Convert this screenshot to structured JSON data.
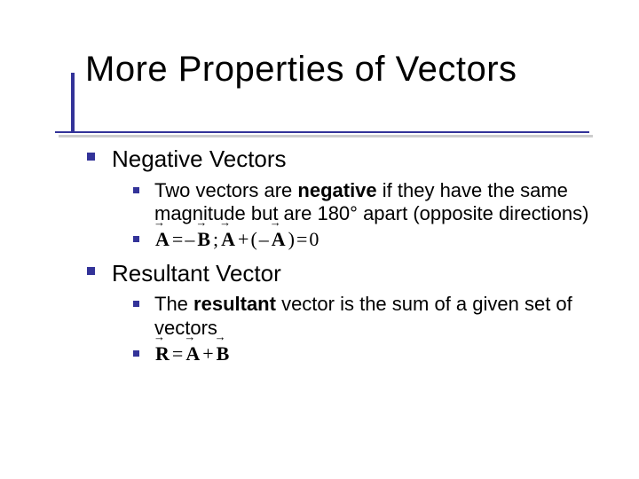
{
  "colors": {
    "accent": "#333399",
    "text": "#000000",
    "bg": "#ffffff"
  },
  "title": "More Properties of Vectors",
  "sections": [
    {
      "heading": "Negative Vectors",
      "items": [
        {
          "type": "text",
          "runs": [
            {
              "t": "Two vectors are ",
              "b": false
            },
            {
              "t": "negative",
              "b": true
            },
            {
              "t": " if they have the same magnitude but are 180° apart (opposite directions)",
              "b": false
            }
          ]
        },
        {
          "type": "equation",
          "tokens": [
            {
              "k": "vec",
              "t": "A"
            },
            {
              "k": "op",
              "t": " = "
            },
            {
              "k": "op",
              "t": "–"
            },
            {
              "k": "vec",
              "t": "B"
            },
            {
              "k": "op",
              "t": ";  "
            },
            {
              "k": "vec",
              "t": "A"
            },
            {
              "k": "op",
              "t": " + "
            },
            {
              "k": "op",
              "t": "("
            },
            {
              "k": "op",
              "t": "–"
            },
            {
              "k": "vec",
              "t": "A"
            },
            {
              "k": "op",
              "t": ")"
            },
            {
              "k": "op",
              "t": " = "
            },
            {
              "k": "op",
              "t": "0"
            }
          ]
        }
      ]
    },
    {
      "heading": "Resultant Vector",
      "items": [
        {
          "type": "text",
          "runs": [
            {
              "t": "The ",
              "b": false
            },
            {
              "t": "resultant",
              "b": true
            },
            {
              "t": " vector is the sum of a given set of vectors",
              "b": false
            }
          ]
        },
        {
          "type": "equation",
          "tokens": [
            {
              "k": "vec",
              "t": "R"
            },
            {
              "k": "op",
              "t": " = "
            },
            {
              "k": "vec",
              "t": "A"
            },
            {
              "k": "op",
              "t": " + "
            },
            {
              "k": "vec",
              "t": "B"
            }
          ]
        }
      ]
    }
  ]
}
